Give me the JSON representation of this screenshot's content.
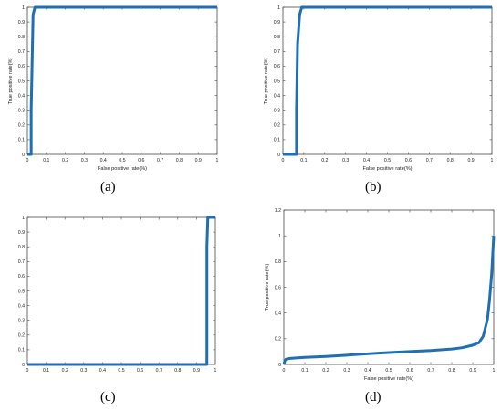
{
  "chart_data": [
    {
      "panel": "(a)",
      "type": "line",
      "xlabel": "False positive rate(%)",
      "ylabel": "True positive rate(%)",
      "xlim": [
        0,
        1
      ],
      "ylim": [
        0,
        1
      ],
      "xticks": [
        "0",
        "0.1",
        "0.2",
        "0.3",
        "0.4",
        "0.5",
        "0.6",
        "0.7",
        "0.8",
        "0.9",
        "1"
      ],
      "yticks": [
        "0",
        "0.1",
        "0.2",
        "0.3",
        "0.4",
        "0.5",
        "0.6",
        "0.7",
        "0.8",
        "0.9",
        "1"
      ],
      "grid": false,
      "series": [
        {
          "color": "#1f6fb4",
          "x": [
            0,
            0.02,
            0.02,
            0.03,
            0.04,
            1.0
          ],
          "y": [
            0,
            0,
            0.3,
            0.95,
            1.0,
            1.0
          ]
        }
      ]
    },
    {
      "panel": "(b)",
      "type": "line",
      "xlabel": "False positive rate(%)",
      "ylabel": "True positive rate(%)",
      "xlim": [
        0,
        1
      ],
      "ylim": [
        0,
        1
      ],
      "xticks": [
        "0",
        "0.1",
        "0.2",
        "0.3",
        "0.4",
        "0.5",
        "0.6",
        "0.7",
        "0.8",
        "0.9",
        "1"
      ],
      "yticks": [
        "0",
        "0.1",
        "0.2",
        "0.3",
        "0.4",
        "0.5",
        "0.6",
        "0.7",
        "0.8",
        "0.9",
        "1"
      ],
      "grid": false,
      "series": [
        {
          "color": "#1f6fb4",
          "x": [
            0,
            0.065,
            0.065,
            0.07,
            0.08,
            0.09,
            1.0
          ],
          "y": [
            0,
            0,
            0.3,
            0.75,
            0.95,
            1.0,
            1.0
          ]
        }
      ]
    },
    {
      "panel": "(c)",
      "type": "line",
      "xlabel": "",
      "ylabel": "",
      "xlim": [
        0,
        1
      ],
      "ylim": [
        0,
        1
      ],
      "xticks": [
        "0",
        "0.1",
        "0.2",
        "0.3",
        "0.4",
        "0.5",
        "0.6",
        "0.7",
        "0.8",
        "0.9",
        "1"
      ],
      "yticks": [
        "0",
        "0.1",
        "0.2",
        "0.3",
        "0.4",
        "0.5",
        "0.6",
        "0.7",
        "0.8",
        "0.9",
        "1"
      ],
      "grid": false,
      "series": [
        {
          "color": "#1f6fb4",
          "x": [
            0,
            0.955,
            0.955,
            0.96,
            1.0
          ],
          "y": [
            0,
            0,
            0.8,
            1.0,
            1.0
          ]
        }
      ]
    },
    {
      "panel": "(d)",
      "type": "line",
      "xlabel": "False positive rate(%)",
      "ylabel": "True positive rate(%)",
      "xlim": [
        0,
        1
      ],
      "ylim": [
        0,
        1.2
      ],
      "xticks": [
        "0",
        "0.1",
        "0.2",
        "0.3",
        "0.4",
        "0.5",
        "0.6",
        "0.7",
        "0.8",
        "0.9",
        "1"
      ],
      "yticks": [
        "0",
        "0.2",
        "0.4",
        "0.6",
        "0.8",
        "1",
        "1.2"
      ],
      "grid": false,
      "series": [
        {
          "color": "#1f6fb4",
          "x": [
            0,
            0.005,
            0.01,
            0.02,
            0.05,
            0.1,
            0.2,
            0.3,
            0.4,
            0.5,
            0.6,
            0.7,
            0.8,
            0.85,
            0.9,
            0.93,
            0.95,
            0.97,
            0.98,
            0.99,
            1.0
          ],
          "y": [
            0,
            0.03,
            0.04,
            0.045,
            0.05,
            0.055,
            0.062,
            0.072,
            0.083,
            0.092,
            0.1,
            0.108,
            0.12,
            0.13,
            0.15,
            0.17,
            0.22,
            0.35,
            0.5,
            0.7,
            1.0
          ]
        }
      ]
    }
  ]
}
